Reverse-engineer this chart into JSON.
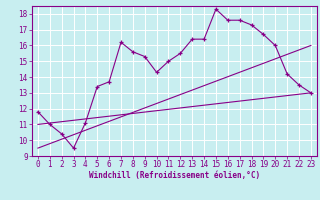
{
  "title": "",
  "xlabel": "Windchill (Refroidissement éolien,°C)",
  "xlim": [
    -0.5,
    23.5
  ],
  "ylim": [
    9,
    18.5
  ],
  "xticks": [
    0,
    1,
    2,
    3,
    4,
    5,
    6,
    7,
    8,
    9,
    10,
    11,
    12,
    13,
    14,
    15,
    16,
    17,
    18,
    19,
    20,
    21,
    22,
    23
  ],
  "yticks": [
    9,
    10,
    11,
    12,
    13,
    14,
    15,
    16,
    17,
    18
  ],
  "bg_color": "#c8eef0",
  "line_color": "#880088",
  "grid_color": "#ffffff",
  "line1_x": [
    0,
    1,
    2,
    3,
    4,
    5,
    6,
    7,
    8,
    9,
    10,
    11,
    12,
    13,
    14,
    15,
    16,
    17,
    18,
    19,
    20,
    21,
    22,
    23
  ],
  "line1_y": [
    11.8,
    11.0,
    10.4,
    9.5,
    11.1,
    13.4,
    13.7,
    16.2,
    15.6,
    15.3,
    14.3,
    15.0,
    15.5,
    16.4,
    16.4,
    18.3,
    17.6,
    17.6,
    17.3,
    16.7,
    16.0,
    14.2,
    13.5,
    13.0
  ],
  "line2_x": [
    0,
    23
  ],
  "line2_y": [
    11.0,
    13.0
  ],
  "line3_x": [
    0,
    23
  ],
  "line3_y": [
    9.5,
    16.0
  ],
  "tick_fontsize": 5.5,
  "xlabel_fontsize": 5.5
}
